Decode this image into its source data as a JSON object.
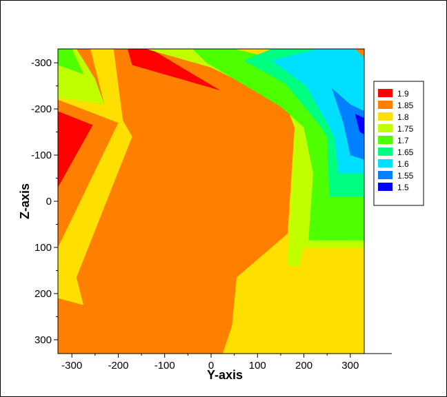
{
  "chart_data": {
    "type": "filled-contour",
    "xlabel": "Y-axis",
    "ylabel": "Z-axis",
    "xlim": [
      -330,
      330
    ],
    "ylim": [
      -330,
      330
    ],
    "y_axis_inverted": true,
    "x_ticks": [
      -300,
      -200,
      -100,
      0,
      100,
      200,
      300
    ],
    "y_ticks": [
      -300,
      -200,
      -100,
      0,
      100,
      200,
      300
    ],
    "legend_position": "right",
    "levels": [
      {
        "label": "1.9",
        "value": 1.9,
        "color": "#ff0000"
      },
      {
        "label": "1.85",
        "value": 1.85,
        "color": "#ff7f00"
      },
      {
        "label": "1.8",
        "value": 1.8,
        "color": "#ffdf00"
      },
      {
        "label": "1.75",
        "value": 1.75,
        "color": "#bfff00"
      },
      {
        "label": "1.7",
        "value": 1.7,
        "color": "#4dff00"
      },
      {
        "label": "1.65",
        "value": 1.65,
        "color": "#00ff80"
      },
      {
        "label": "1.6",
        "value": 1.6,
        "color": "#00dfff"
      },
      {
        "label": "1.55",
        "value": 1.55,
        "color": "#0080ff"
      },
      {
        "label": "1.5",
        "value": 1.5,
        "color": "#0000ff"
      }
    ],
    "regions": [
      {
        "name": "background",
        "level": "1.8",
        "points": [
          [
            -330,
            -330
          ],
          [
            330,
            -330
          ],
          [
            330,
            330
          ],
          [
            -330,
            330
          ]
        ]
      },
      {
        "name": "left-band",
        "level": "1.85",
        "points": [
          [
            -330,
            -330
          ],
          [
            -260,
            -330
          ],
          [
            -230,
            -210
          ],
          [
            -330,
            -225
          ]
        ]
      },
      {
        "name": "left-band",
        "level": "1.85",
        "points": [
          [
            -330,
            -220
          ],
          [
            -200,
            -170
          ],
          [
            -330,
            100
          ]
        ]
      },
      {
        "name": "main-orange",
        "level": "1.85",
        "points": [
          [
            -210,
            -330
          ],
          [
            -140,
            -330
          ],
          [
            0,
            -290
          ],
          [
            120,
            -230
          ],
          [
            165,
            -200
          ],
          [
            180,
            -160
          ],
          [
            165,
            70
          ],
          [
            55,
            165
          ],
          [
            45,
            270
          ],
          [
            25,
            330
          ],
          [
            -330,
            330
          ],
          [
            -330,
            210
          ],
          [
            -275,
            225
          ],
          [
            -290,
            165
          ],
          [
            -170,
            -140
          ],
          [
            -190,
            -175
          ]
        ]
      },
      {
        "name": "red-top",
        "level": "1.9",
        "points": [
          [
            -180,
            -330
          ],
          [
            -130,
            -330
          ],
          [
            20,
            -240
          ],
          [
            -170,
            -295
          ]
        ]
      },
      {
        "name": "red-left",
        "level": "1.9",
        "points": [
          [
            -330,
            -195
          ],
          [
            -255,
            -165
          ],
          [
            -330,
            -30
          ]
        ]
      },
      {
        "name": "green-top-left",
        "level": "1.75",
        "points": [
          [
            -330,
            -330
          ],
          [
            -290,
            -330
          ],
          [
            -250,
            -265
          ],
          [
            -230,
            -210
          ],
          [
            -330,
            -225
          ]
        ]
      },
      {
        "name": "green-top-left",
        "level": "1.7",
        "points": [
          [
            -330,
            -330
          ],
          [
            -300,
            -330
          ],
          [
            -275,
            -275
          ],
          [
            -330,
            -295
          ]
        ]
      },
      {
        "name": "green-top-center",
        "level": "1.75",
        "points": [
          [
            -140,
            -330
          ],
          [
            -55,
            -330
          ],
          [
            250,
            -270
          ],
          [
            320,
            -230
          ],
          [
            330,
            -230
          ],
          [
            330,
            100
          ],
          [
            200,
            100
          ],
          [
            190,
            140
          ],
          [
            165,
            140
          ],
          [
            180,
            -160
          ],
          [
            165,
            -200
          ],
          [
            120,
            -230
          ],
          [
            0,
            -290
          ]
        ]
      },
      {
        "name": "bright-green-right",
        "level": "1.7",
        "points": [
          [
            -40,
            -330
          ],
          [
            50,
            -330
          ],
          [
            265,
            -280
          ],
          [
            330,
            -240
          ],
          [
            330,
            85
          ],
          [
            210,
            85
          ],
          [
            220,
            -60
          ],
          [
            200,
            -160
          ],
          [
            150,
            -205
          ],
          [
            100,
            -235
          ],
          [
            -10,
            -300
          ]
        ]
      },
      {
        "name": "teal-right",
        "level": "1.65",
        "points": [
          [
            130,
            -330
          ],
          [
            300,
            -330
          ],
          [
            330,
            -310
          ],
          [
            330,
            -10
          ],
          [
            255,
            -10
          ],
          [
            250,
            -140
          ],
          [
            230,
            -170
          ],
          [
            160,
            -255
          ],
          [
            70,
            -305
          ]
        ]
      },
      {
        "name": "cyan-right",
        "level": "1.6",
        "points": [
          [
            230,
            -330
          ],
          [
            330,
            -330
          ],
          [
            330,
            -290
          ],
          [
            330,
            -60
          ],
          [
            275,
            -60
          ],
          [
            265,
            -140
          ],
          [
            250,
            -170
          ],
          [
            205,
            -250
          ],
          [
            130,
            -305
          ]
        ]
      },
      {
        "name": "blue-right",
        "level": "1.55",
        "points": [
          [
            260,
            -245
          ],
          [
            300,
            -210
          ],
          [
            330,
            -195
          ],
          [
            330,
            -90
          ],
          [
            300,
            -100
          ],
          [
            285,
            -170
          ]
        ]
      },
      {
        "name": "deep-blue-right",
        "level": "1.5",
        "points": [
          [
            310,
            -190
          ],
          [
            330,
            -180
          ],
          [
            330,
            -145
          ],
          [
            320,
            -150
          ]
        ]
      },
      {
        "name": "top-right-corner",
        "level": "1.85",
        "points": [
          [
            310,
            -330
          ],
          [
            330,
            -330
          ],
          [
            330,
            -312
          ]
        ]
      }
    ]
  }
}
